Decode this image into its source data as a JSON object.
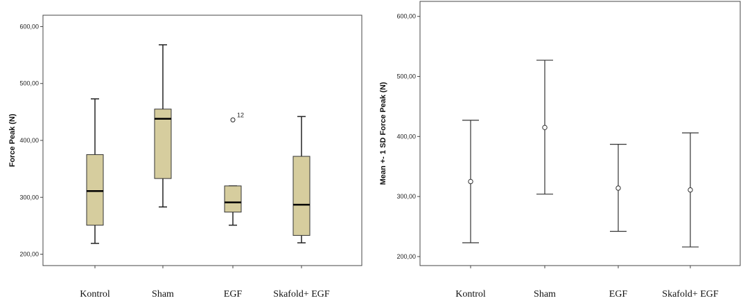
{
  "chart_data": [
    {
      "type": "box",
      "ylabel": "Force Peak (N)",
      "ylim": [
        180,
        620
      ],
      "yticks": [
        200,
        300,
        400,
        500,
        600
      ],
      "ytick_labels": [
        "200,00",
        "300,00",
        "400,00",
        "500,00",
        "600,00"
      ],
      "categories": [
        "Kontrol",
        "Sham",
        "EGF",
        "Skafold+ EGF"
      ],
      "box_color": "#d6cd9e",
      "boxes": [
        {
          "min": 219,
          "q1": 251,
          "median": 311,
          "q3": 375,
          "max": 473,
          "outliers": []
        },
        {
          "min": 283,
          "q1": 333,
          "median": 438,
          "q3": 455,
          "max": 568,
          "outliers": []
        },
        {
          "min": 251,
          "q1": 274,
          "median": 291,
          "q3": 320,
          "max": 320,
          "outliers": [
            {
              "value": 436,
              "label": "12"
            }
          ]
        },
        {
          "min": 220,
          "q1": 233,
          "median": 287,
          "q3": 372,
          "max": 442,
          "outliers": []
        }
      ]
    },
    {
      "type": "errorbar",
      "ylabel": "Mean +- 1 SD Force Peak (N)",
      "ylim": [
        185,
        625
      ],
      "yticks": [
        200,
        300,
        400,
        500,
        600
      ],
      "ytick_labels": [
        "200,00",
        "300,00",
        "400,00",
        "500,00",
        "600,00"
      ],
      "categories": [
        "Kontrol",
        "Sham",
        "EGF",
        "Skafold+ EGF"
      ],
      "points": [
        {
          "mean": 325,
          "lower": 223,
          "upper": 427
        },
        {
          "mean": 415,
          "lower": 304,
          "upper": 527
        },
        {
          "mean": 314,
          "lower": 242,
          "upper": 387
        },
        {
          "mean": 311,
          "lower": 216,
          "upper": 406
        }
      ]
    }
  ]
}
